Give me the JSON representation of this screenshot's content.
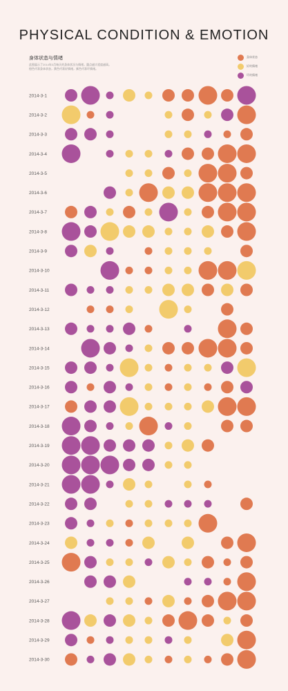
{
  "title": "PHYSICAL CONDITION & EMOTION",
  "subtitle": "身体状态与情绪",
  "description": [
    "此图展示了2014年3月每天的身体状况与情绪，圆点越大程度越高。",
    "橙色代表身体状态，黄色代表好情绪，紫色代表坏情绪。"
  ],
  "colors": {
    "orange": "#e07a51",
    "yellow": "#f2cb6c",
    "purple": "#a9529b",
    "background": "#fbf1ee"
  },
  "chart_data": {
    "type": "scatter",
    "legend_position": "top-right",
    "legend": [
      {
        "key": "o",
        "label": "身体状态",
        "color": "#e07a51"
      },
      {
        "key": "y",
        "label": "好的情绪",
        "color": "#f2cb6c"
      },
      {
        "key": "p",
        "label": "坏的情绪",
        "color": "#a9529b"
      }
    ],
    "size_scale": "1 = small, 2 = medium, 3 = large",
    "columns": 10,
    "rows": [
      {
        "date": "2014-3-1",
        "dots": [
          [
            "p",
            2
          ],
          [
            "p",
            3
          ],
          [
            "p",
            1
          ],
          [
            "y",
            2
          ],
          [
            "y",
            1
          ],
          [
            "o",
            2
          ],
          [
            "o",
            2
          ],
          [
            "o",
            3
          ],
          [
            "o",
            2
          ],
          [
            "p",
            3
          ]
        ]
      },
      {
        "date": "2014-3-2",
        "dots": [
          [
            "y",
            3
          ],
          [
            "o",
            1
          ],
          [
            "p",
            1
          ],
          null,
          null,
          [
            "y",
            1
          ],
          [
            "o",
            2
          ],
          [
            "y",
            1
          ],
          [
            "p",
            2
          ],
          [
            "o",
            3
          ]
        ]
      },
      {
        "date": "2014-3-3",
        "dots": [
          [
            "p",
            2
          ],
          [
            "p",
            2
          ],
          [
            "p",
            1
          ],
          null,
          null,
          [
            "y",
            1
          ],
          [
            "y",
            1
          ],
          [
            "p",
            1
          ],
          [
            "o",
            1
          ],
          [
            "o",
            2
          ]
        ]
      },
      {
        "date": "2014-3-4",
        "dots": [
          [
            "p",
            3
          ],
          null,
          [
            "p",
            1
          ],
          [
            "y",
            1
          ],
          [
            "y",
            1
          ],
          [
            "p",
            1
          ],
          [
            "o",
            2
          ],
          [
            "o",
            2
          ],
          [
            "o",
            3
          ],
          [
            "o",
            3
          ]
        ]
      },
      {
        "date": "2014-3-5",
        "dots": [
          null,
          null,
          null,
          [
            "y",
            1
          ],
          [
            "y",
            1
          ],
          [
            "o",
            2
          ],
          [
            "y",
            1
          ],
          [
            "o",
            3
          ],
          [
            "o",
            3
          ],
          [
            "o",
            2
          ]
        ]
      },
      {
        "date": "2014-3-6",
        "dots": [
          null,
          null,
          [
            "p",
            2
          ],
          [
            "y",
            1
          ],
          [
            "o",
            3
          ],
          [
            "y",
            2
          ],
          [
            "y",
            2
          ],
          [
            "o",
            3
          ],
          [
            "o",
            3
          ],
          [
            "o",
            3
          ]
        ]
      },
      {
        "date": "2014-3-7",
        "dots": [
          [
            "o",
            2
          ],
          [
            "p",
            2
          ],
          [
            "y",
            1
          ],
          [
            "o",
            2
          ],
          [
            "y",
            1
          ],
          [
            "p",
            3
          ],
          [
            "y",
            1
          ],
          [
            "o",
            2
          ],
          [
            "o",
            3
          ],
          [
            "o",
            3
          ]
        ]
      },
      {
        "date": "2014-3-8",
        "dots": [
          [
            "p",
            3
          ],
          [
            "p",
            2
          ],
          [
            "y",
            3
          ],
          [
            "y",
            2
          ],
          [
            "y",
            2
          ],
          [
            "y",
            1
          ],
          [
            "y",
            1
          ],
          [
            "y",
            2
          ],
          [
            "o",
            2
          ],
          [
            "o",
            3
          ]
        ]
      },
      {
        "date": "2014-3-9",
        "dots": [
          [
            "p",
            2
          ],
          [
            "y",
            2
          ],
          [
            "p",
            1
          ],
          null,
          [
            "o",
            1
          ],
          [
            "y",
            1
          ],
          [
            "y",
            1
          ],
          [
            "y",
            1
          ],
          null,
          [
            "o",
            2
          ]
        ]
      },
      {
        "date": "2014-3-10",
        "dots": [
          null,
          null,
          [
            "p",
            3
          ],
          [
            "o",
            1
          ],
          [
            "o",
            1
          ],
          [
            "y",
            1
          ],
          [
            "y",
            1
          ],
          [
            "o",
            3
          ],
          [
            "o",
            3
          ],
          [
            "y",
            3
          ]
        ]
      },
      {
        "date": "2014-3-11",
        "dots": [
          [
            "p",
            2
          ],
          [
            "p",
            1
          ],
          [
            "p",
            1
          ],
          [
            "y",
            1
          ],
          [
            "y",
            1
          ],
          [
            "y",
            2
          ],
          [
            "y",
            2
          ],
          [
            "o",
            2
          ],
          [
            "y",
            2
          ],
          [
            "o",
            2
          ]
        ]
      },
      {
        "date": "2014-3-12",
        "dots": [
          null,
          [
            "o",
            1
          ],
          [
            "o",
            1
          ],
          [
            "y",
            1
          ],
          null,
          [
            "y",
            3
          ],
          [
            "y",
            1
          ],
          null,
          [
            "o",
            2
          ],
          null
        ]
      },
      {
        "date": "2014-3-13",
        "dots": [
          [
            "p",
            2
          ],
          [
            "p",
            1
          ],
          [
            "p",
            1
          ],
          [
            "p",
            2
          ],
          [
            "o",
            1
          ],
          null,
          [
            "p",
            1
          ],
          null,
          [
            "o",
            3
          ],
          [
            "o",
            2
          ]
        ]
      },
      {
        "date": "2014-3-14",
        "dots": [
          null,
          [
            "p",
            3
          ],
          [
            "p",
            2
          ],
          [
            "p",
            1
          ],
          [
            "y",
            1
          ],
          [
            "o",
            2
          ],
          [
            "o",
            2
          ],
          [
            "o",
            3
          ],
          [
            "o",
            3
          ],
          [
            "o",
            2
          ]
        ]
      },
      {
        "date": "2014-3-15",
        "dots": [
          [
            "p",
            2
          ],
          [
            "p",
            2
          ],
          [
            "p",
            1
          ],
          [
            "y",
            3
          ],
          [
            "y",
            1
          ],
          [
            "o",
            1
          ],
          [
            "y",
            1
          ],
          [
            "y",
            1
          ],
          [
            "p",
            2
          ],
          [
            "y",
            3
          ]
        ]
      },
      {
        "date": "2014-3-16",
        "dots": [
          [
            "p",
            2
          ],
          [
            "o",
            1
          ],
          [
            "p",
            2
          ],
          [
            "p",
            1
          ],
          [
            "y",
            1
          ],
          [
            "o",
            1
          ],
          [
            "y",
            1
          ],
          [
            "o",
            1
          ],
          [
            "o",
            2
          ],
          [
            "p",
            2
          ]
        ]
      },
      {
        "date": "2014-3-17",
        "dots": [
          [
            "o",
            2
          ],
          [
            "p",
            2
          ],
          [
            "p",
            2
          ],
          [
            "y",
            3
          ],
          [
            "y",
            1
          ],
          [
            "y",
            1
          ],
          [
            "y",
            1
          ],
          [
            "y",
            2
          ],
          [
            "o",
            3
          ],
          [
            "o",
            3
          ]
        ]
      },
      {
        "date": "2014-3-18",
        "dots": [
          [
            "p",
            3
          ],
          [
            "p",
            2
          ],
          [
            "p",
            1
          ],
          [
            "y",
            1
          ],
          [
            "o",
            3
          ],
          [
            "p",
            1
          ],
          [
            "y",
            1
          ],
          null,
          [
            "o",
            2
          ],
          [
            "o",
            2
          ]
        ]
      },
      {
        "date": "2014-3-19",
        "dots": [
          [
            "p",
            3
          ],
          [
            "p",
            3
          ],
          [
            "p",
            2
          ],
          [
            "p",
            2
          ],
          [
            "p",
            2
          ],
          [
            "y",
            1
          ],
          [
            "y",
            2
          ],
          [
            "o",
            2
          ],
          null,
          null
        ]
      },
      {
        "date": "2014-3-20",
        "dots": [
          [
            "p",
            3
          ],
          [
            "p",
            3
          ],
          [
            "p",
            3
          ],
          [
            "p",
            2
          ],
          [
            "p",
            2
          ],
          [
            "y",
            1
          ],
          [
            "y",
            1
          ],
          null,
          null,
          null
        ]
      },
      {
        "date": "2014-3-21",
        "dots": [
          [
            "p",
            3
          ],
          [
            "p",
            3
          ],
          [
            "p",
            1
          ],
          [
            "y",
            2
          ],
          [
            "y",
            1
          ],
          null,
          [
            "y",
            1
          ],
          [
            "o",
            1
          ],
          null,
          null
        ]
      },
      {
        "date": "2014-3-22",
        "dots": [
          [
            "p",
            2
          ],
          [
            "p",
            2
          ],
          null,
          [
            "y",
            1
          ],
          [
            "y",
            1
          ],
          [
            "p",
            1
          ],
          [
            "p",
            1
          ],
          [
            "p",
            1
          ],
          null,
          [
            "o",
            2
          ]
        ]
      },
      {
        "date": "2014-3-23",
        "dots": [
          [
            "p",
            2
          ],
          [
            "p",
            1
          ],
          [
            "y",
            1
          ],
          [
            "o",
            1
          ],
          [
            "y",
            1
          ],
          [
            "y",
            1
          ],
          [
            "y",
            1
          ],
          [
            "o",
            3
          ],
          null,
          null
        ]
      },
      {
        "date": "2014-3-24",
        "dots": [
          [
            "y",
            2
          ],
          [
            "p",
            1
          ],
          [
            "p",
            1
          ],
          [
            "o",
            1
          ],
          [
            "y",
            2
          ],
          null,
          [
            "y",
            2
          ],
          null,
          [
            "o",
            2
          ],
          [
            "o",
            3
          ]
        ]
      },
      {
        "date": "2014-3-25",
        "dots": [
          [
            "o",
            3
          ],
          [
            "p",
            2
          ],
          [
            "y",
            1
          ],
          [
            "y",
            1
          ],
          [
            "p",
            1
          ],
          [
            "y",
            2
          ],
          [
            "y",
            1
          ],
          [
            "o",
            2
          ],
          [
            "o",
            1
          ],
          [
            "o",
            2
          ]
        ]
      },
      {
        "date": "2014-3-26",
        "dots": [
          null,
          [
            "p",
            2
          ],
          [
            "p",
            2
          ],
          [
            "y",
            2
          ],
          null,
          null,
          [
            "p",
            1
          ],
          [
            "p",
            1
          ],
          [
            "o",
            1
          ],
          [
            "o",
            3
          ]
        ]
      },
      {
        "date": "2014-3-27",
        "dots": [
          null,
          null,
          [
            "y",
            1
          ],
          [
            "y",
            1
          ],
          [
            "o",
            1
          ],
          [
            "y",
            2
          ],
          [
            "o",
            1
          ],
          [
            "o",
            2
          ],
          [
            "o",
            3
          ],
          [
            "o",
            3
          ]
        ]
      },
      {
        "date": "2014-3-28",
        "dots": [
          [
            "p",
            3
          ],
          [
            "y",
            2
          ],
          [
            "p",
            2
          ],
          [
            "y",
            2
          ],
          [
            "y",
            1
          ],
          [
            "o",
            2
          ],
          [
            "o",
            3
          ],
          [
            "o",
            2
          ],
          [
            "y",
            1
          ],
          [
            "o",
            2
          ]
        ]
      },
      {
        "date": "2014-3-29",
        "dots": [
          [
            "p",
            2
          ],
          [
            "o",
            1
          ],
          [
            "p",
            1
          ],
          [
            "y",
            1
          ],
          [
            "y",
            1
          ],
          [
            "p",
            1
          ],
          [
            "y",
            1
          ],
          null,
          [
            "y",
            2
          ],
          [
            "o",
            3
          ]
        ]
      },
      {
        "date": "2014-3-30",
        "dots": [
          [
            "o",
            2
          ],
          [
            "p",
            1
          ],
          [
            "p",
            2
          ],
          [
            "y",
            2
          ],
          [
            "y",
            1
          ],
          [
            "o",
            1
          ],
          [
            "y",
            1
          ],
          [
            "o",
            1
          ],
          [
            "o",
            2
          ],
          [
            "o",
            3
          ]
        ]
      }
    ]
  }
}
